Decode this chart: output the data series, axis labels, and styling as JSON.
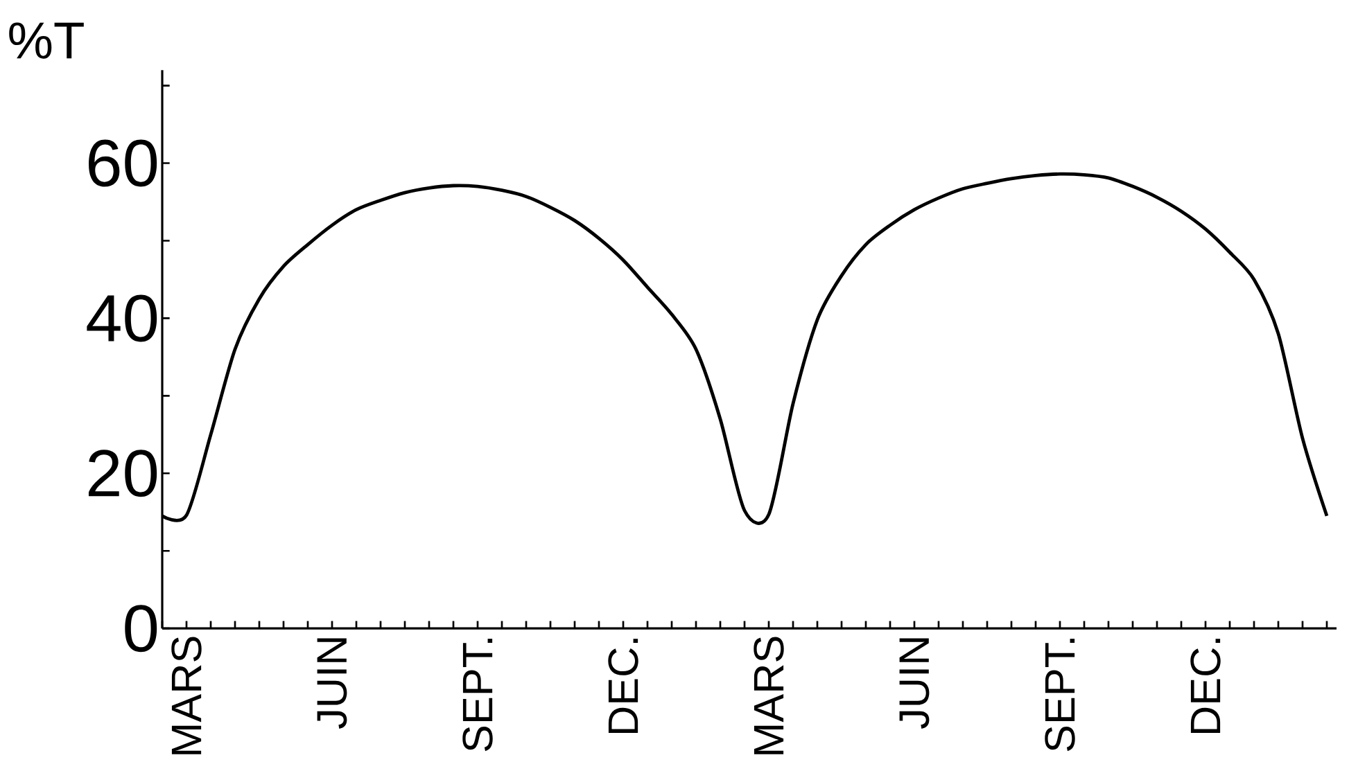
{
  "chart_data": {
    "type": "line",
    "ylabel": "%T",
    "categories": [
      null,
      "MARS",
      null,
      null,
      null,
      null,
      null,
      "JUIN",
      null,
      null,
      null,
      null,
      null,
      "SEPT.",
      null,
      null,
      null,
      null,
      null,
      "DEC.",
      null,
      null,
      null,
      null,
      null,
      "MARS",
      null,
      null,
      null,
      null,
      null,
      "JUIN",
      null,
      null,
      null,
      null,
      null,
      "SEPT.",
      null,
      null,
      null,
      null,
      null,
      "DEC.",
      null,
      null,
      null,
      null,
      null
    ],
    "series": [
      {
        "color": "#000000",
        "values": [
          14.5,
          14.6,
          25,
          36,
          42.5,
          46.7,
          49.5,
          52,
          54,
          55.2,
          56.2,
          56.8,
          57.1,
          57,
          56.5,
          55.7,
          54.3,
          52.6,
          50.3,
          47.5,
          44,
          40.5,
          36,
          27,
          15.2,
          14.7,
          29,
          39.8,
          45.5,
          49.5,
          52,
          54,
          55.5,
          56.7,
          57.4,
          58,
          58.4,
          58.6,
          58.5,
          58.1,
          57,
          55.6,
          53.8,
          51.5,
          48.5,
          45,
          38,
          24.5,
          14.5
        ]
      }
    ],
    "ylim": [
      0,
      72
    ],
    "yticks": [
      0,
      20,
      40,
      60,
      {
        "value": 10,
        "label": null
      },
      {
        "value": 30,
        "label": null
      },
      {
        "value": 50,
        "label": null
      },
      {
        "value": 70,
        "label": null
      }
    ],
    "grid": false,
    "legend": false,
    "marker": "none",
    "line_style": "solid"
  }
}
